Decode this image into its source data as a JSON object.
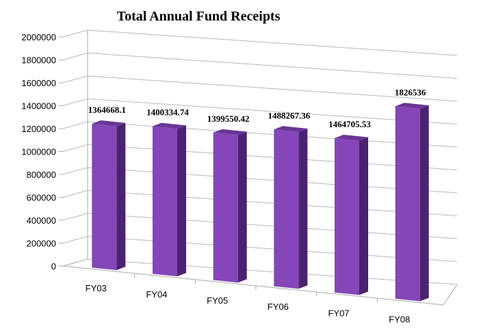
{
  "chart_data": {
    "type": "bar",
    "title": "Total Annual Fund Receipts",
    "xlabel": "",
    "ylabel": "",
    "categories": [
      "FY03",
      "FY04",
      "FY05",
      "FY06",
      "FY07",
      "FY08"
    ],
    "values": [
      1364668.1,
      1400334.74,
      1399550.42,
      1488267.36,
      1464705.53,
      1826536
    ],
    "value_labels": [
      "1364668.1",
      "1400334.74",
      "1399550.42",
      "1488267.36",
      "1464705.53",
      "1826536"
    ],
    "ylim": [
      0,
      2000000
    ],
    "yticks": [
      0,
      200000,
      400000,
      600000,
      800000,
      1000000,
      1200000,
      1400000,
      1600000,
      1800000,
      2000000
    ],
    "ytick_labels": [
      "0",
      "200000",
      "400000",
      "600000",
      "800000",
      "1000000",
      "1200000",
      "1400000",
      "1600000",
      "1800000",
      "2000000"
    ],
    "grid": true,
    "legend": "none",
    "style": "3d-perspective",
    "colors": {
      "bar_front": "#8446b8",
      "bar_side": "#4a2370",
      "bar_top": "#6a3596",
      "grid": "#b8b8b8",
      "text": "#000000"
    }
  }
}
